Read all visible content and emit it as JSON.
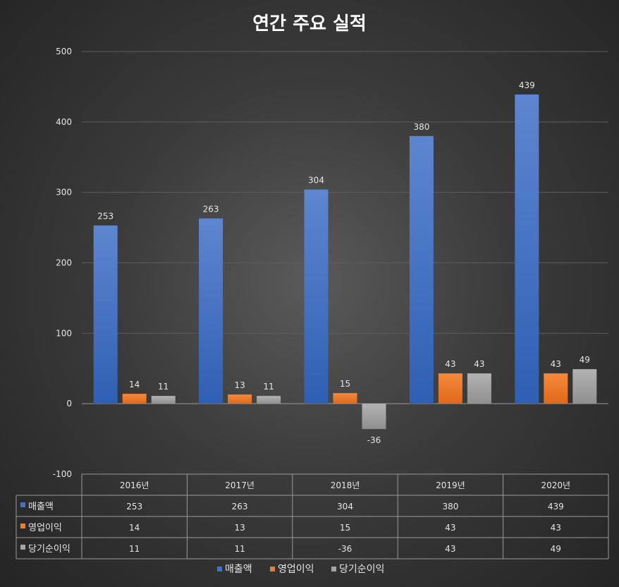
{
  "chart_data": {
    "type": "bar",
    "title": "연간 주요 실적",
    "categories": [
      "2016년",
      "2017년",
      "2018년",
      "2019년",
      "2020년"
    ],
    "series": [
      {
        "name": "매출액",
        "values": [
          253,
          263,
          304,
          380,
          439
        ],
        "color": "#4472c4"
      },
      {
        "name": "영업이익",
        "values": [
          14,
          13,
          15,
          43,
          43
        ],
        "color": "#ed7d31"
      },
      {
        "name": "당기순이익",
        "values": [
          11,
          11,
          -36,
          43,
          49
        ],
        "color": "#a5a5a5"
      }
    ],
    "ylim": [
      -100,
      500
    ],
    "yticks": [
      -100,
      0,
      100,
      200,
      300,
      400,
      500
    ],
    "grid": true,
    "data_table": true,
    "legend": "bottom"
  }
}
